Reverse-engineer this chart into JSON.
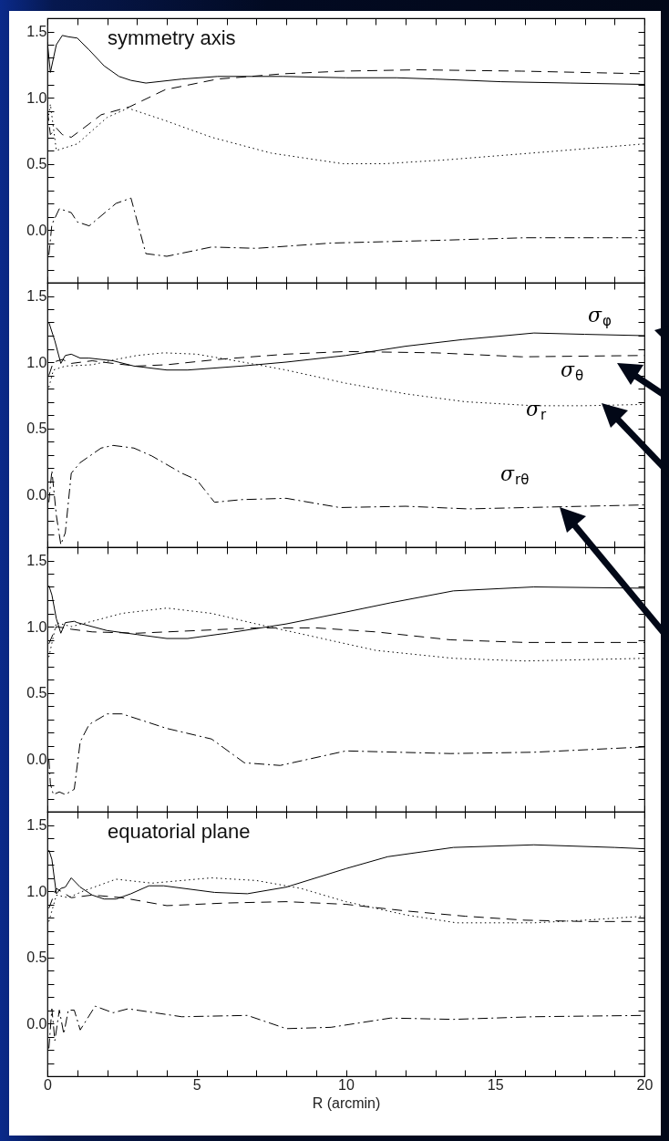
{
  "chart_data": [
    {
      "type": "line",
      "annotations": [
        "symmetry axis"
      ],
      "xlim": [
        0,
        20
      ],
      "ylim": [
        -0.4,
        1.6
      ],
      "tick_labels": "y",
      "xticks": [
        0,
        {
          "value": 1,
          "label": null
        },
        {
          "value": 2,
          "label": null
        },
        {
          "value": 3,
          "label": null
        },
        {
          "value": 4,
          "label": null
        },
        5,
        {
          "value": 6,
          "label": null
        },
        {
          "value": 7,
          "label": null
        },
        {
          "value": 8,
          "label": null
        },
        {
          "value": 9,
          "label": null
        },
        10,
        {
          "value": 11,
          "label": null
        },
        {
          "value": 12,
          "label": null
        },
        {
          "value": 13,
          "label": null
        },
        {
          "value": 14,
          "label": null
        },
        15,
        {
          "value": 16,
          "label": null
        },
        {
          "value": 17,
          "label": null
        },
        {
          "value": 18,
          "label": null
        },
        {
          "value": 19,
          "label": null
        },
        20
      ],
      "yticks": [
        {
          "value": -0.3,
          "label": null
        },
        {
          "value": -0.2,
          "label": null
        },
        {
          "value": -0.1,
          "label": null
        },
        {
          "value": 0,
          "label": "0.0"
        },
        {
          "value": 0.1,
          "label": null
        },
        {
          "value": 0.2,
          "label": null
        },
        {
          "value": 0.3,
          "label": null
        },
        {
          "value": 0.4,
          "label": null
        },
        {
          "value": 0.5,
          "label": "0.5"
        },
        {
          "value": 0.6,
          "label": null
        },
        {
          "value": 0.7,
          "label": null
        },
        {
          "value": 0.8,
          "label": null
        },
        {
          "value": 0.9,
          "label": null
        },
        {
          "value": 1,
          "label": "1.0"
        },
        {
          "value": 1.1,
          "label": null
        },
        {
          "value": 1.2,
          "label": null
        },
        {
          "value": 1.3,
          "label": null
        },
        {
          "value": 1.4,
          "label": null
        },
        {
          "value": 1.5,
          "label": "1.5"
        }
      ],
      "series": [
        {
          "color": "#000000",
          "line_style": "solid",
          "x": [
            0,
            0.1,
            0.3,
            0.5,
            0.7,
            1.0,
            1.4,
            1.9,
            2.4,
            2.8,
            3.3,
            4.5,
            5.7,
            7.9,
            10,
            11.7,
            13,
            15.2,
            17.5,
            20
          ],
          "values": [
            1.42,
            1.19,
            1.4,
            1.47,
            1.46,
            1.45,
            1.36,
            1.24,
            1.16,
            1.13,
            1.11,
            1.14,
            1.16,
            1.16,
            1.15,
            1.15,
            1.14,
            1.12,
            1.11,
            1.1
          ]
        },
        {
          "color": "#000000",
          "line_style": "dashed",
          "x": [
            0,
            0.1,
            0.3,
            0.5,
            0.8,
            1.1,
            1.8,
            2.75,
            3.95,
            5.7,
            7.9,
            9.9,
            12.4,
            15.9,
            20
          ],
          "values": [
            0.9,
            0.72,
            0.77,
            0.72,
            0.7,
            0.75,
            0.87,
            0.93,
            1.06,
            1.14,
            1.18,
            1.2,
            1.21,
            1.2,
            1.18
          ]
        },
        {
          "color": "#000000",
          "line_style": "dotted",
          "x": [
            0,
            0.1,
            0.3,
            1.0,
            2.0,
            2.7,
            3.9,
            5.5,
            7.5,
            9.9,
            11.3,
            13.4,
            16.2,
            20
          ],
          "values": [
            0.8,
            0.95,
            0.6,
            0.65,
            0.85,
            0.92,
            0.83,
            0.7,
            0.58,
            0.5,
            0.5,
            0.53,
            0.58,
            0.65
          ]
        },
        {
          "color": "#000000",
          "line_style": "dashdot",
          "x": [
            0.05,
            0.15,
            0.4,
            0.8,
            1.0,
            1.4,
            2.3,
            2.8,
            3.3,
            4.0,
            5.5,
            7.0,
            9.5,
            13,
            16,
            20
          ],
          "values": [
            -0.19,
            0.04,
            0.16,
            0.13,
            0.06,
            0.03,
            0.2,
            0.24,
            -0.18,
            -0.2,
            -0.13,
            -0.14,
            -0.1,
            -0.08,
            -0.06,
            -0.06
          ]
        }
      ]
    },
    {
      "type": "line",
      "xlim": [
        0,
        20
      ],
      "ylim": [
        -0.4,
        1.6
      ],
      "tick_labels": "y",
      "xticks": [
        0,
        {
          "value": 1,
          "label": null
        },
        {
          "value": 2,
          "label": null
        },
        {
          "value": 3,
          "label": null
        },
        {
          "value": 4,
          "label": null
        },
        5,
        {
          "value": 6,
          "label": null
        },
        {
          "value": 7,
          "label": null
        },
        {
          "value": 8,
          "label": null
        },
        {
          "value": 9,
          "label": null
        },
        10,
        {
          "value": 11,
          "label": null
        },
        {
          "value": 12,
          "label": null
        },
        {
          "value": 13,
          "label": null
        },
        {
          "value": 14,
          "label": null
        },
        15,
        {
          "value": 16,
          "label": null
        },
        {
          "value": 17,
          "label": null
        },
        {
          "value": 18,
          "label": null
        },
        {
          "value": 19,
          "label": null
        },
        20
      ],
      "yticks": [
        {
          "value": -0.3,
          "label": null
        },
        {
          "value": -0.2,
          "label": null
        },
        {
          "value": -0.1,
          "label": null
        },
        {
          "value": 0,
          "label": "0.0"
        },
        {
          "value": 0.1,
          "label": null
        },
        {
          "value": 0.2,
          "label": null
        },
        {
          "value": 0.3,
          "label": null
        },
        {
          "value": 0.4,
          "label": null
        },
        {
          "value": 0.5,
          "label": "0.5"
        },
        {
          "value": 0.6,
          "label": null
        },
        {
          "value": 0.7,
          "label": null
        },
        {
          "value": 0.8,
          "label": null
        },
        {
          "value": 0.9,
          "label": null
        },
        {
          "value": 1,
          "label": "1.0"
        },
        {
          "value": 1.1,
          "label": null
        },
        {
          "value": 1.2,
          "label": null
        },
        {
          "value": 1.3,
          "label": null
        },
        {
          "value": 1.4,
          "label": null
        },
        {
          "value": 1.5,
          "label": "1.5"
        }
      ],
      "series": [
        {
          "name": "σ$_{φ}$",
          "color": "#000000",
          "line_style": "solid",
          "x": [
            0.05,
            0.25,
            0.45,
            0.6,
            0.8,
            1.1,
            1.4,
            2.2,
            2.9,
            4.0,
            4.7,
            6.5,
            8.0,
            10,
            12,
            13.9,
            16.3,
            18,
            20
          ],
          "values": [
            1.3,
            1.16,
            0.99,
            1.05,
            1.06,
            1.03,
            1.03,
            1.01,
            0.97,
            0.94,
            0.94,
            0.97,
            1.0,
            1.05,
            1.12,
            1.17,
            1.22,
            1.21,
            1.2
          ]
        },
        {
          "name": "σ$_{θ}$",
          "color": "#000000",
          "line_style": "dashed",
          "x": [
            0.05,
            0.2,
            0.5,
            0.8,
            1.5,
            2.2,
            3.0,
            4.0,
            5.7,
            8,
            10,
            13,
            15.9,
            20
          ],
          "values": [
            0.9,
            1.0,
            1.02,
            0.99,
            1.01,
            0.99,
            0.97,
            0.98,
            1.02,
            1.06,
            1.08,
            1.07,
            1.04,
            1.05
          ]
        },
        {
          "name": "σ$_{r}$",
          "color": "#000000",
          "line_style": "dotted",
          "x": [
            0.05,
            0.2,
            0.6,
            1.5,
            2.3,
            3,
            3.9,
            5.0,
            6.3,
            8.0,
            10,
            12,
            14,
            16.3,
            18,
            20
          ],
          "values": [
            0.81,
            0.94,
            0.97,
            0.98,
            1.02,
            1.05,
            1.07,
            1.06,
            1.01,
            0.94,
            0.84,
            0.76,
            0.7,
            0.67,
            0.67,
            0.68
          ]
        },
        {
          "name": "σ$_{rθ}$",
          "color": "#000000",
          "line_style": "dashdot",
          "x": [
            0.05,
            0.15,
            0.3,
            0.45,
            0.6,
            0.8,
            1.1,
            1.8,
            2.2,
            2.9,
            3.5,
            4.5,
            5.0,
            5.6,
            6.5,
            8.0,
            9.8,
            12,
            14.1,
            16,
            20
          ],
          "values": [
            -0.06,
            0.18,
            -0.16,
            -0.38,
            -0.29,
            0.16,
            0.24,
            0.35,
            0.37,
            0.35,
            0.29,
            0.16,
            0.11,
            -0.06,
            -0.04,
            -0.03,
            -0.1,
            -0.09,
            -0.11,
            -0.1,
            -0.08
          ]
        }
      ]
    },
    {
      "type": "line",
      "xlim": [
        0,
        20
      ],
      "ylim": [
        -0.4,
        1.6
      ],
      "tick_labels": "y",
      "xticks": [
        0,
        {
          "value": 1,
          "label": null
        },
        {
          "value": 2,
          "label": null
        },
        {
          "value": 3,
          "label": null
        },
        {
          "value": 4,
          "label": null
        },
        5,
        {
          "value": 6,
          "label": null
        },
        {
          "value": 7,
          "label": null
        },
        {
          "value": 8,
          "label": null
        },
        {
          "value": 9,
          "label": null
        },
        10,
        {
          "value": 11,
          "label": null
        },
        {
          "value": 12,
          "label": null
        },
        {
          "value": 13,
          "label": null
        },
        {
          "value": 14,
          "label": null
        },
        15,
        {
          "value": 16,
          "label": null
        },
        {
          "value": 17,
          "label": null
        },
        {
          "value": 18,
          "label": null
        },
        {
          "value": 19,
          "label": null
        },
        20
      ],
      "yticks": [
        {
          "value": -0.3,
          "label": null
        },
        {
          "value": -0.2,
          "label": null
        },
        {
          "value": -0.1,
          "label": null
        },
        {
          "value": 0,
          "label": "0.0"
        },
        {
          "value": 0.1,
          "label": null
        },
        {
          "value": 0.2,
          "label": null
        },
        {
          "value": 0.3,
          "label": null
        },
        {
          "value": 0.4,
          "label": null
        },
        {
          "value": 0.5,
          "label": "0.5"
        },
        {
          "value": 0.6,
          "label": null
        },
        {
          "value": 0.7,
          "label": null
        },
        {
          "value": 0.8,
          "label": null
        },
        {
          "value": 0.9,
          "label": null
        },
        {
          "value": 1,
          "label": "1.0"
        },
        {
          "value": 1.1,
          "label": null
        },
        {
          "value": 1.2,
          "label": null
        },
        {
          "value": 1.3,
          "label": null
        },
        {
          "value": 1.4,
          "label": null
        },
        {
          "value": 1.5,
          "label": "1.5"
        }
      ],
      "series": [
        {
          "color": "#000000",
          "line_style": "solid",
          "x": [
            0.05,
            0.15,
            0.3,
            0.45,
            0.6,
            0.9,
            1.0,
            2.0,
            3.0,
            4.0,
            4.7,
            6,
            8,
            10,
            11.5,
            13.6,
            16.3,
            20
          ],
          "values": [
            1.31,
            1.24,
            1.06,
            0.95,
            1.03,
            1.04,
            1.03,
            0.97,
            0.94,
            0.91,
            0.91,
            0.95,
            1.02,
            1.11,
            1.18,
            1.27,
            1.3,
            1.29
          ]
        },
        {
          "color": "#000000",
          "line_style": "dashed",
          "x": [
            0.05,
            0.3,
            0.8,
            1.5,
            3,
            5,
            7,
            9,
            11,
            13.5,
            16,
            20
          ],
          "values": [
            0.87,
            1.0,
            0.98,
            0.96,
            0.95,
            0.97,
            0.99,
            0.99,
            0.96,
            0.9,
            0.88,
            0.88
          ]
        },
        {
          "color": "#000000",
          "line_style": "dotted",
          "x": [
            0.05,
            0.3,
            0.8,
            1.5,
            2.5,
            4.0,
            5.5,
            7,
            9,
            11,
            13.6,
            16,
            20
          ],
          "values": [
            0.77,
            1.03,
            1.0,
            1.04,
            1.1,
            1.14,
            1.1,
            1.02,
            0.92,
            0.82,
            0.76,
            0.74,
            0.76
          ]
        },
        {
          "color": "#000000",
          "line_style": "dashdot",
          "x": [
            0.05,
            0.1,
            0.2,
            0.4,
            0.6,
            0.9,
            1.1,
            1.4,
            2.0,
            2.5,
            4,
            5.5,
            6.6,
            7.8,
            10,
            13.5,
            16.3,
            20
          ],
          "values": [
            0,
            -0.19,
            -0.27,
            -0.25,
            -0.27,
            -0.23,
            0.13,
            0.26,
            0.34,
            0.34,
            0.23,
            0.15,
            -0.03,
            -0.05,
            0.06,
            0.04,
            0.05,
            0.09
          ]
        }
      ]
    },
    {
      "type": "line",
      "annotations": [
        "equatorial plane"
      ],
      "xlabel": "R (arcmin)",
      "xlim": [
        0,
        20
      ],
      "ylim": [
        -0.4,
        1.6
      ],
      "xticks": [
        0,
        {
          "value": 1,
          "label": null
        },
        {
          "value": 2,
          "label": null
        },
        {
          "value": 3,
          "label": null
        },
        {
          "value": 4,
          "label": null
        },
        5,
        {
          "value": 6,
          "label": null
        },
        {
          "value": 7,
          "label": null
        },
        {
          "value": 8,
          "label": null
        },
        {
          "value": 9,
          "label": null
        },
        10,
        {
          "value": 11,
          "label": null
        },
        {
          "value": 12,
          "label": null
        },
        {
          "value": 13,
          "label": null
        },
        {
          "value": 14,
          "label": null
        },
        15,
        {
          "value": 16,
          "label": null
        },
        {
          "value": 17,
          "label": null
        },
        {
          "value": 18,
          "label": null
        },
        {
          "value": 19,
          "label": null
        },
        20
      ],
      "yticks": [
        {
          "value": -0.3,
          "label": null
        },
        {
          "value": -0.2,
          "label": null
        },
        {
          "value": -0.1,
          "label": null
        },
        {
          "value": 0,
          "label": "0.0"
        },
        {
          "value": 0.1,
          "label": null
        },
        {
          "value": 0.2,
          "label": null
        },
        {
          "value": 0.3,
          "label": null
        },
        {
          "value": 0.4,
          "label": null
        },
        {
          "value": 0.5,
          "label": "0.5"
        },
        {
          "value": 0.6,
          "label": null
        },
        {
          "value": 0.7,
          "label": null
        },
        {
          "value": 0.8,
          "label": null
        },
        {
          "value": 0.9,
          "label": null
        },
        {
          "value": 1,
          "label": "1.0"
        },
        {
          "value": 1.1,
          "label": null
        },
        {
          "value": 1.2,
          "label": null
        },
        {
          "value": 1.3,
          "label": null
        },
        {
          "value": 1.4,
          "label": null
        },
        {
          "value": 1.5,
          "label": "1.5"
        }
      ],
      "series": [
        {
          "color": "#000000",
          "line_style": "solid",
          "x": [
            0.05,
            0.15,
            0.3,
            0.45,
            0.6,
            0.8,
            1.1,
            1.5,
            1.9,
            2.3,
            2.8,
            3.4,
            3.9,
            5.6,
            6.7,
            8,
            10,
            11.4,
            13.6,
            16.3,
            19,
            20
          ],
          "values": [
            1.31,
            1.24,
            0.98,
            1.02,
            1.03,
            1.1,
            1.03,
            0.97,
            0.94,
            0.94,
            0.98,
            1.04,
            1.04,
            0.99,
            0.98,
            1.03,
            1.17,
            1.26,
            1.33,
            1.35,
            1.33,
            1.32
          ]
        },
        {
          "color": "#000000",
          "line_style": "dashed",
          "x": [
            0.05,
            0.3,
            0.8,
            1.5,
            2.5,
            4,
            6,
            8,
            10,
            12,
            14,
            16,
            18,
            20
          ],
          "values": [
            0.87,
            1.02,
            0.95,
            0.97,
            0.95,
            0.89,
            0.91,
            0.92,
            0.9,
            0.85,
            0.81,
            0.78,
            0.77,
            0.77
          ]
        },
        {
          "color": "#000000",
          "line_style": "dotted",
          "x": [
            0.05,
            0.3,
            0.7,
            1.2,
            2.3,
            3.5,
            5.5,
            7,
            8.5,
            10,
            12,
            13.7,
            16.3,
            18,
            20
          ],
          "values": [
            0.77,
            0.97,
            0.95,
            1.0,
            1.09,
            1.06,
            1.1,
            1.08,
            1.02,
            0.92,
            0.82,
            0.76,
            0.76,
            0.78,
            0.81
          ]
        },
        {
          "color": "#000000",
          "line_style": "dashdot",
          "x": [
            0.05,
            0.15,
            0.25,
            0.4,
            0.55,
            0.7,
            0.9,
            1.1,
            1.6,
            2.2,
            2.7,
            4.5,
            6.7,
            8.0,
            9.5,
            11.5,
            13.6,
            16.3,
            20
          ],
          "values": [
            -0.19,
            0.11,
            -0.13,
            0.1,
            -0.08,
            0.1,
            0.1,
            -0.05,
            0.13,
            0.08,
            0.11,
            0.05,
            0.06,
            -0.04,
            -0.03,
            0.04,
            0.03,
            0.05,
            0.06
          ]
        }
      ]
    }
  ]
}
